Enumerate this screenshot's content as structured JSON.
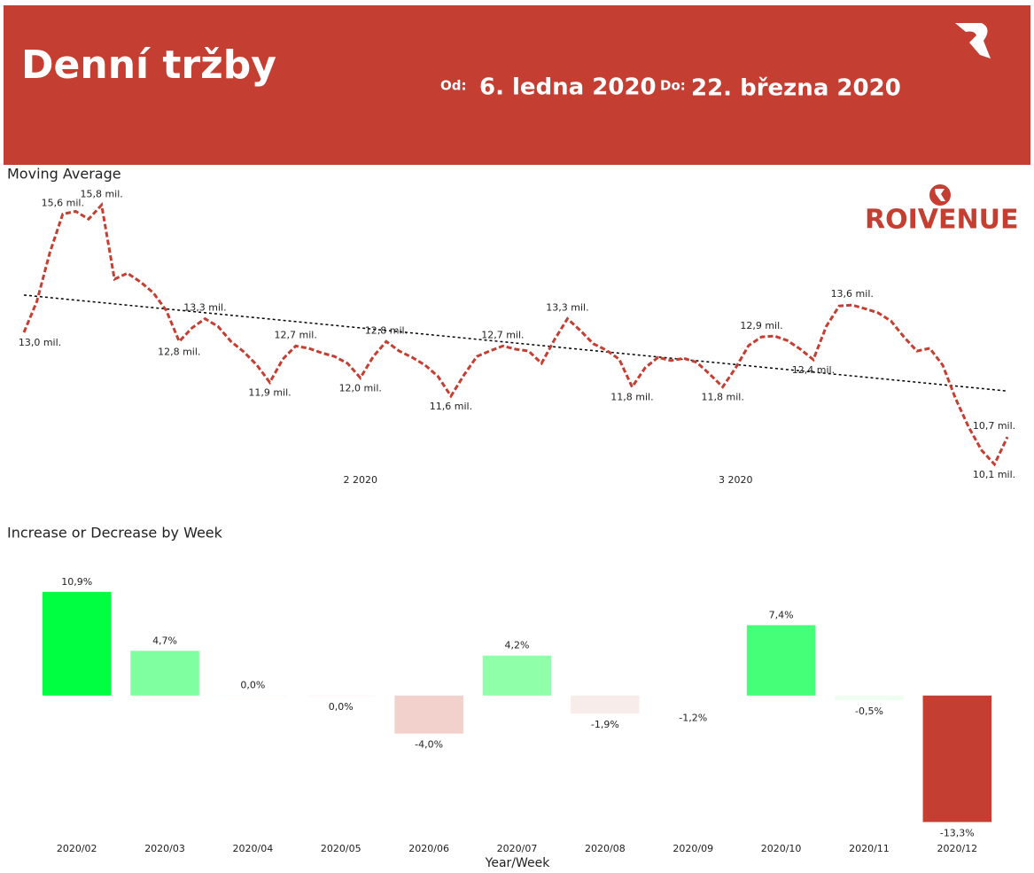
{
  "header": {
    "title": "Denní tržby",
    "from_label": "Od:",
    "from": "6. ledna 2020",
    "to_label": "Do:",
    "to": "22. března 2020",
    "brand": "ROIVENUE"
  },
  "chart_data": [
    {
      "type": "line",
      "title": "Moving Average",
      "color": "#c43e31",
      "trend_color": "#000000",
      "ylim": [
        10,
        16
      ],
      "categories": [
        null,
        null,
        null,
        null,
        null,
        null,
        null,
        null,
        null,
        null,
        null,
        null,
        null,
        null,
        null,
        null,
        null,
        null,
        null,
        null,
        null,
        null,
        null,
        null,
        null,
        null,
        "2 2020",
        null,
        null,
        null,
        null,
        null,
        null,
        null,
        null,
        null,
        null,
        null,
        null,
        null,
        null,
        null,
        null,
        null,
        null,
        null,
        null,
        null,
        null,
        null,
        null,
        null,
        null,
        null,
        null,
        "3 2020",
        null,
        null,
        null,
        null,
        null,
        null,
        null,
        null,
        null,
        null,
        null,
        null,
        null,
        null,
        null,
        null,
        null,
        null,
        null,
        null,
        null
      ],
      "values": [
        13.0,
        13.68,
        14.75,
        15.6,
        15.66,
        15.49,
        15.8,
        14.17,
        14.3,
        14.11,
        13.87,
        13.48,
        12.8,
        13.1,
        13.3,
        13.13,
        12.8,
        12.57,
        12.28,
        11.9,
        12.41,
        12.7,
        12.65,
        12.55,
        12.47,
        12.32,
        12.0,
        12.47,
        12.8,
        12.59,
        12.45,
        12.28,
        12.03,
        11.6,
        12.06,
        12.47,
        12.59,
        12.7,
        12.63,
        12.59,
        12.32,
        12.84,
        13.3,
        13.04,
        12.75,
        12.61,
        12.41,
        11.8,
        12.22,
        12.45,
        12.38,
        12.43,
        12.34,
        12.08,
        11.8,
        12.22,
        12.71,
        12.9,
        12.92,
        12.82,
        12.63,
        12.4,
        13.13,
        13.58,
        13.6,
        13.52,
        13.43,
        13.25,
        12.9,
        12.59,
        12.65,
        12.28,
        11.54,
        10.92,
        10.41,
        10.1,
        10.7
      ],
      "value_labels": [
        "13,0 mil.",
        null,
        null,
        "15,6 mil.",
        null,
        null,
        "15,8 mil.",
        null,
        null,
        null,
        null,
        null,
        "12,8 mil.",
        null,
        "13,3 mil.",
        null,
        null,
        null,
        null,
        "11,9 mil.",
        null,
        "12,7 mil.",
        null,
        null,
        null,
        null,
        "12,0 mil.",
        null,
        "12,8 mil.",
        null,
        null,
        null,
        null,
        "11,6 mil.",
        null,
        null,
        null,
        "12,7 mil.",
        null,
        null,
        null,
        null,
        "13,3 mil.",
        null,
        null,
        null,
        null,
        "11,8 mil.",
        null,
        null,
        null,
        null,
        null,
        null,
        "11,8 mil.",
        null,
        null,
        "12,9 mil.",
        null,
        null,
        null,
        "12,4 mil.",
        null,
        null,
        "13,6 mil.",
        null,
        null,
        null,
        null,
        null,
        null,
        null,
        null,
        null,
        null,
        "10,1 mil.",
        "10,7 mil."
      ],
      "trendline": [
        13.82,
        11.71
      ]
    },
    {
      "type": "bar",
      "title": "Increase or Decrease by Week",
      "x_label": "Year/Week",
      "ylim": [
        -14,
        12
      ],
      "categories": [
        "2020/02",
        "2020/03",
        "2020/04",
        "2020/05",
        "2020/06",
        "2020/07",
        "2020/08",
        "2020/09",
        "2020/10",
        "2020/11",
        "2020/12"
      ],
      "values": [
        10.9,
        4.7,
        0.01,
        -0.01,
        -4.0,
        4.2,
        -1.9,
        -1.2,
        7.4,
        -0.5,
        -13.3
      ],
      "value_labels": [
        "10,9%",
        "4,7%",
        "0,0%",
        "0,0%",
        "-4,0%",
        "4,2%",
        "-1,9%",
        "-1,2%",
        "7,4%",
        "-0,5%",
        "-13,3%"
      ],
      "colors": [
        "#00ff40",
        "#80ffa0",
        "#f2fff4",
        "#fdf6f5",
        "#f2d0cc",
        "#8fffaa",
        "#f8ecea",
        "#ffffff",
        "#45ff78",
        "#eefff1",
        "#c43e31"
      ]
    }
  ]
}
